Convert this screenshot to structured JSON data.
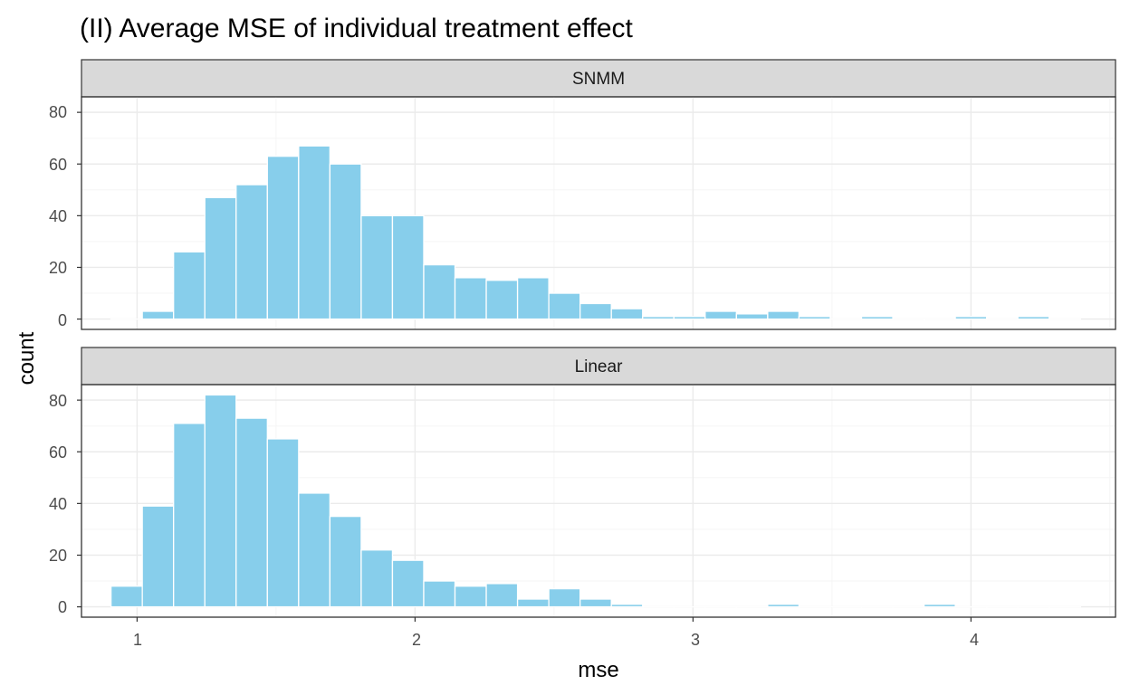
{
  "colors": {
    "bar_fill": "#87CEEB",
    "bar_stroke": "#ffffff",
    "strip_fill": "#D9D9D9",
    "panel_border": "#333333",
    "grid_major": "#EBEBEB",
    "grid_minor": "#F5F5F5"
  },
  "chart_data": {
    "type": "bar",
    "title": "(II) Average MSE of individual treatment effect",
    "xlabel": "mse",
    "ylabel": "count",
    "xlim": [
      0.8,
      4.52
    ],
    "ylim": [
      -4,
      86
    ],
    "x_ticks": [
      1,
      2,
      3,
      4
    ],
    "y_ticks": [
      0,
      20,
      40,
      60,
      80
    ],
    "grid": true,
    "bin_width": 0.1125,
    "bin_centers": [
      0.9625,
      1.075,
      1.1875,
      1.3,
      1.4125,
      1.525,
      1.6375,
      1.75,
      1.8625,
      1.975,
      2.0875,
      2.2,
      2.3125,
      2.425,
      2.5375,
      2.65,
      2.7625,
      2.875,
      2.9875,
      3.1,
      3.2125,
      3.325,
      3.4375,
      3.55,
      3.6625,
      3.775,
      3.8875,
      4.0,
      4.1125,
      4.225,
      4.3375
    ],
    "facets": [
      {
        "label": "SNMM",
        "counts": [
          0,
          3,
          26,
          47,
          52,
          63,
          67,
          60,
          40,
          40,
          21,
          16,
          15,
          16,
          10,
          6,
          4,
          1,
          1,
          3,
          2,
          3,
          1,
          0,
          1,
          0,
          0,
          1,
          0,
          1,
          0
        ]
      },
      {
        "label": "Linear",
        "counts": [
          8,
          39,
          71,
          82,
          73,
          65,
          44,
          35,
          22,
          18,
          10,
          8,
          9,
          3,
          7,
          3,
          1,
          0,
          0,
          0,
          0,
          1,
          0,
          0,
          0,
          0,
          1,
          0,
          0,
          0,
          0
        ]
      }
    ]
  }
}
